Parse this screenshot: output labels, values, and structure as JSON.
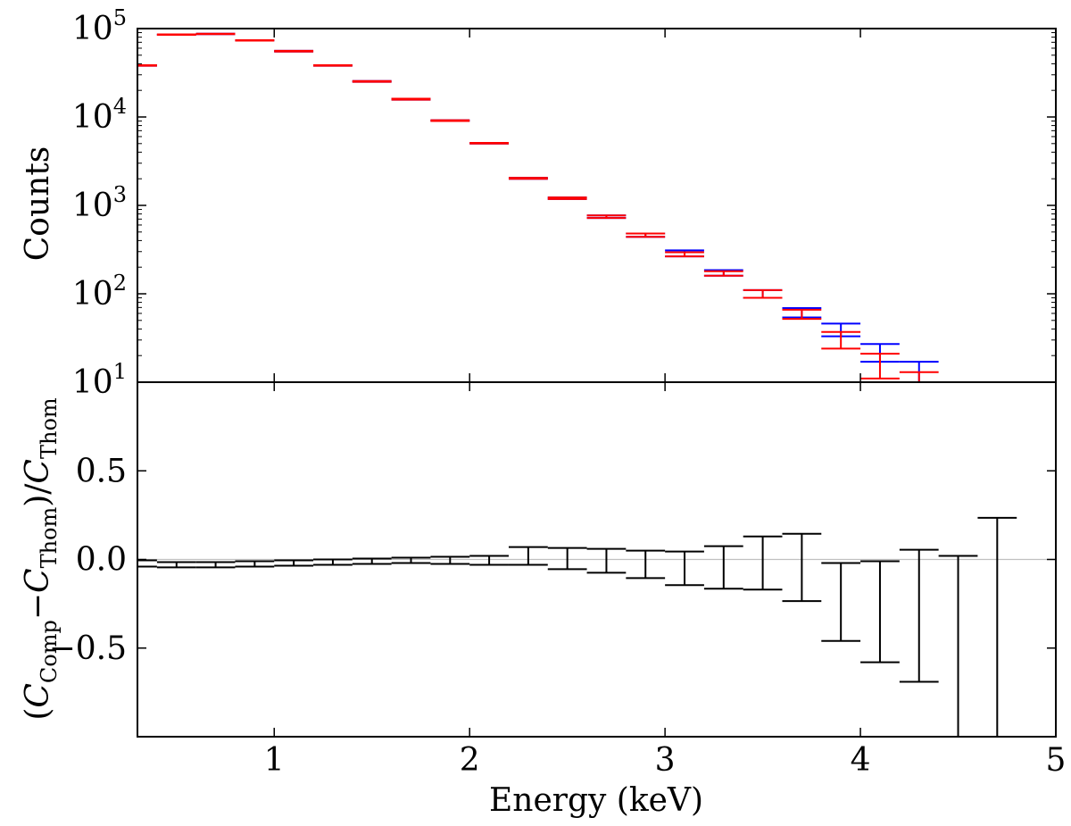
{
  "figure": {
    "xlabel": "Energy (keV)",
    "xlim": [
      0.3,
      5.0
    ],
    "xticks": [
      {
        "v": 1,
        "label": "1"
      },
      {
        "v": 2,
        "label": "2"
      },
      {
        "v": 3,
        "label": "3"
      },
      {
        "v": 4,
        "label": "4"
      },
      {
        "v": 5,
        "label": "5"
      }
    ],
    "colors": {
      "blue": "#0000ff",
      "red": "#ff0000",
      "black": "#000000",
      "zero_line": "#c0c0c0"
    }
  },
  "chart_data": [
    {
      "type": "errorbar",
      "panel": "top",
      "ylabel": "Counts",
      "yscale": "log",
      "ylim": [
        10,
        100000
      ],
      "yticks": [
        {
          "v": 10,
          "base": "10",
          "exp": "1"
        },
        {
          "v": 100,
          "base": "10",
          "exp": "2"
        },
        {
          "v": 1000,
          "base": "10",
          "exp": "3"
        },
        {
          "v": 10000,
          "base": "10",
          "exp": "4"
        },
        {
          "v": 100000,
          "base": "10",
          "exp": "5"
        }
      ],
      "bin_width": 0.2,
      "series": [
        {
          "color": "blue",
          "x": [
            0.3,
            0.5,
            0.7,
            0.9,
            1.1,
            1.3,
            1.5,
            1.7,
            1.9,
            2.1,
            2.3,
            2.5,
            2.7,
            2.9,
            3.1,
            3.3,
            3.5,
            3.7,
            3.9,
            4.1,
            4.3
          ],
          "lower": [
            38000,
            85000,
            86500,
            73000,
            55000,
            38000,
            25000,
            15700,
            9000,
            5000,
            2000,
            1180,
            720,
            440,
            265,
            160,
            90,
            54,
            33,
            17,
            10
          ],
          "upper": [
            38500,
            86000,
            87500,
            74000,
            56000,
            38500,
            25500,
            16100,
            9200,
            5100,
            2050,
            1230,
            770,
            480,
            310,
            185,
            110,
            69,
            46,
            27,
            17
          ]
        },
        {
          "color": "red",
          "x": [
            0.3,
            0.5,
            0.7,
            0.9,
            1.1,
            1.3,
            1.5,
            1.7,
            1.9,
            2.1,
            2.3,
            2.5,
            2.7,
            2.9,
            3.1,
            3.3,
            3.5,
            3.7,
            3.9,
            4.1,
            4.3
          ],
          "lower": [
            38000,
            85000,
            86500,
            73000,
            55000,
            38000,
            25000,
            15700,
            9000,
            5000,
            2000,
            1180,
            720,
            440,
            265,
            160,
            90,
            52,
            24,
            11,
            10
          ],
          "upper": [
            38500,
            86000,
            87500,
            74000,
            56000,
            38500,
            25500,
            16100,
            9200,
            5100,
            2050,
            1230,
            770,
            480,
            295,
            180,
            110,
            66,
            37,
            21,
            13
          ]
        }
      ]
    },
    {
      "type": "errorbar",
      "panel": "bottom",
      "ylabel": {
        "open": "(",
        "c1": "C",
        "sub1": "Comp",
        "minus": "−",
        "c2": "C",
        "sub2": "Thom",
        "close": ")/",
        "c3": "C",
        "sub3": "Thom"
      },
      "ylim": [
        -1.0,
        1.0
      ],
      "yticks": [
        {
          "v": 0.5,
          "label": "0.5"
        },
        {
          "v": 0.0,
          "label": "0.0"
        },
        {
          "v": -0.5,
          "label": "−0.5"
        }
      ],
      "zero_line": 0,
      "bin_width": 0.2,
      "series": [
        {
          "color": "black",
          "x": [
            0.3,
            0.5,
            0.7,
            0.9,
            1.1,
            1.3,
            1.5,
            1.7,
            1.9,
            2.1,
            2.3,
            2.5,
            2.7,
            2.9,
            3.1,
            3.3,
            3.5,
            3.7,
            3.9,
            4.1,
            4.3,
            4.5,
            4.7
          ],
          "lower": [
            -0.04,
            -0.045,
            -0.045,
            -0.04,
            -0.035,
            -0.03,
            -0.025,
            -0.02,
            -0.025,
            -0.03,
            -0.03,
            -0.055,
            -0.075,
            -0.105,
            -0.145,
            -0.165,
            -0.17,
            -0.235,
            -0.46,
            -0.58,
            -0.69,
            -1.0,
            -1.0
          ],
          "upper": [
            -0.005,
            -0.015,
            -0.015,
            -0.01,
            -0.005,
            0.0,
            0.005,
            0.01,
            0.015,
            0.02,
            0.07,
            0.065,
            0.06,
            0.05,
            0.045,
            0.075,
            0.13,
            0.145,
            -0.02,
            -0.01,
            0.055,
            0.02,
            0.235
          ]
        }
      ]
    }
  ]
}
